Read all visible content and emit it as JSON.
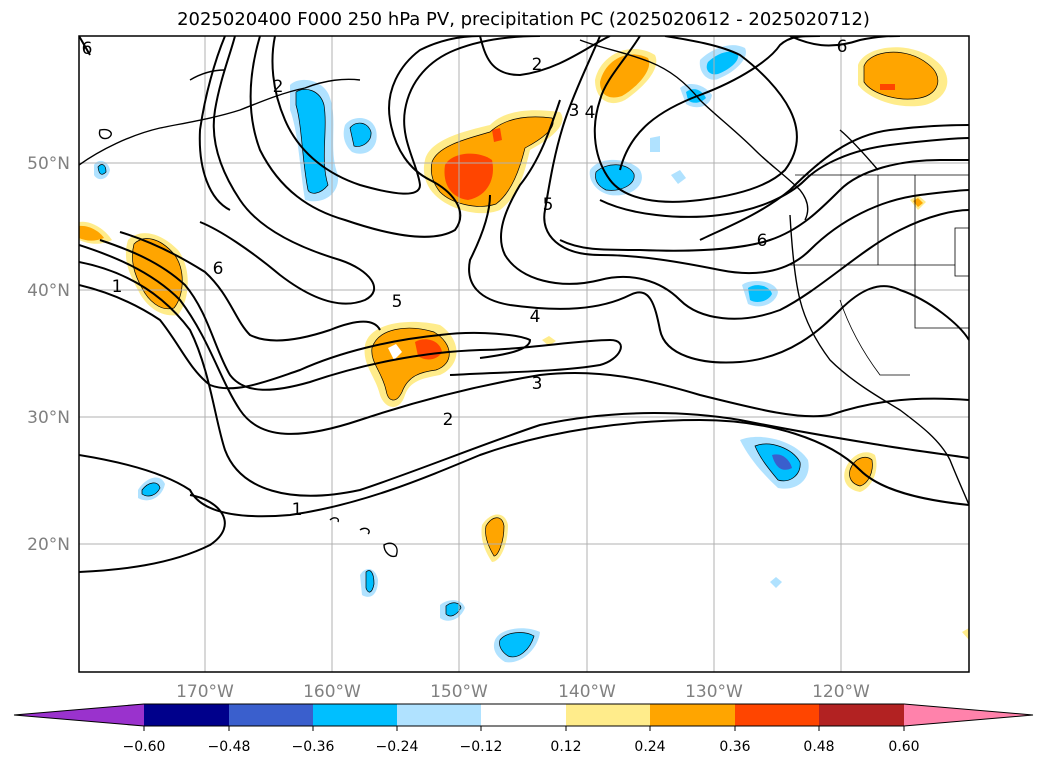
{
  "title": "2025020400 F000 250 hPa PV, precipitation PC (2025020612 - 2025020712)",
  "map": {
    "lat_labels": [
      "50°N",
      "40°N",
      "30°N",
      "20°N"
    ],
    "lon_labels": [
      "170°W",
      "160°W",
      "150°W",
      "140°W",
      "130°W",
      "120°W"
    ],
    "contour_labels": [
      "6",
      "1",
      "2",
      "4",
      "3",
      "2",
      "6",
      "5",
      "4",
      "3",
      "2",
      "1",
      "6",
      "5",
      "6"
    ]
  },
  "colorbar": {
    "tick_labels": [
      "−0.60",
      "−0.48",
      "−0.36",
      "−0.24",
      "−0.12",
      "0.12",
      "0.24",
      "0.36",
      "0.48",
      "0.60"
    ],
    "colors": [
      "#9a32cd",
      "#00008b",
      "#3a5fcd",
      "#00bfff",
      "#b0e2ff",
      "#ffffff",
      "#ffec8b",
      "#ffa500",
      "#ff4500",
      "#b22222",
      "#ff82ab"
    ]
  }
}
